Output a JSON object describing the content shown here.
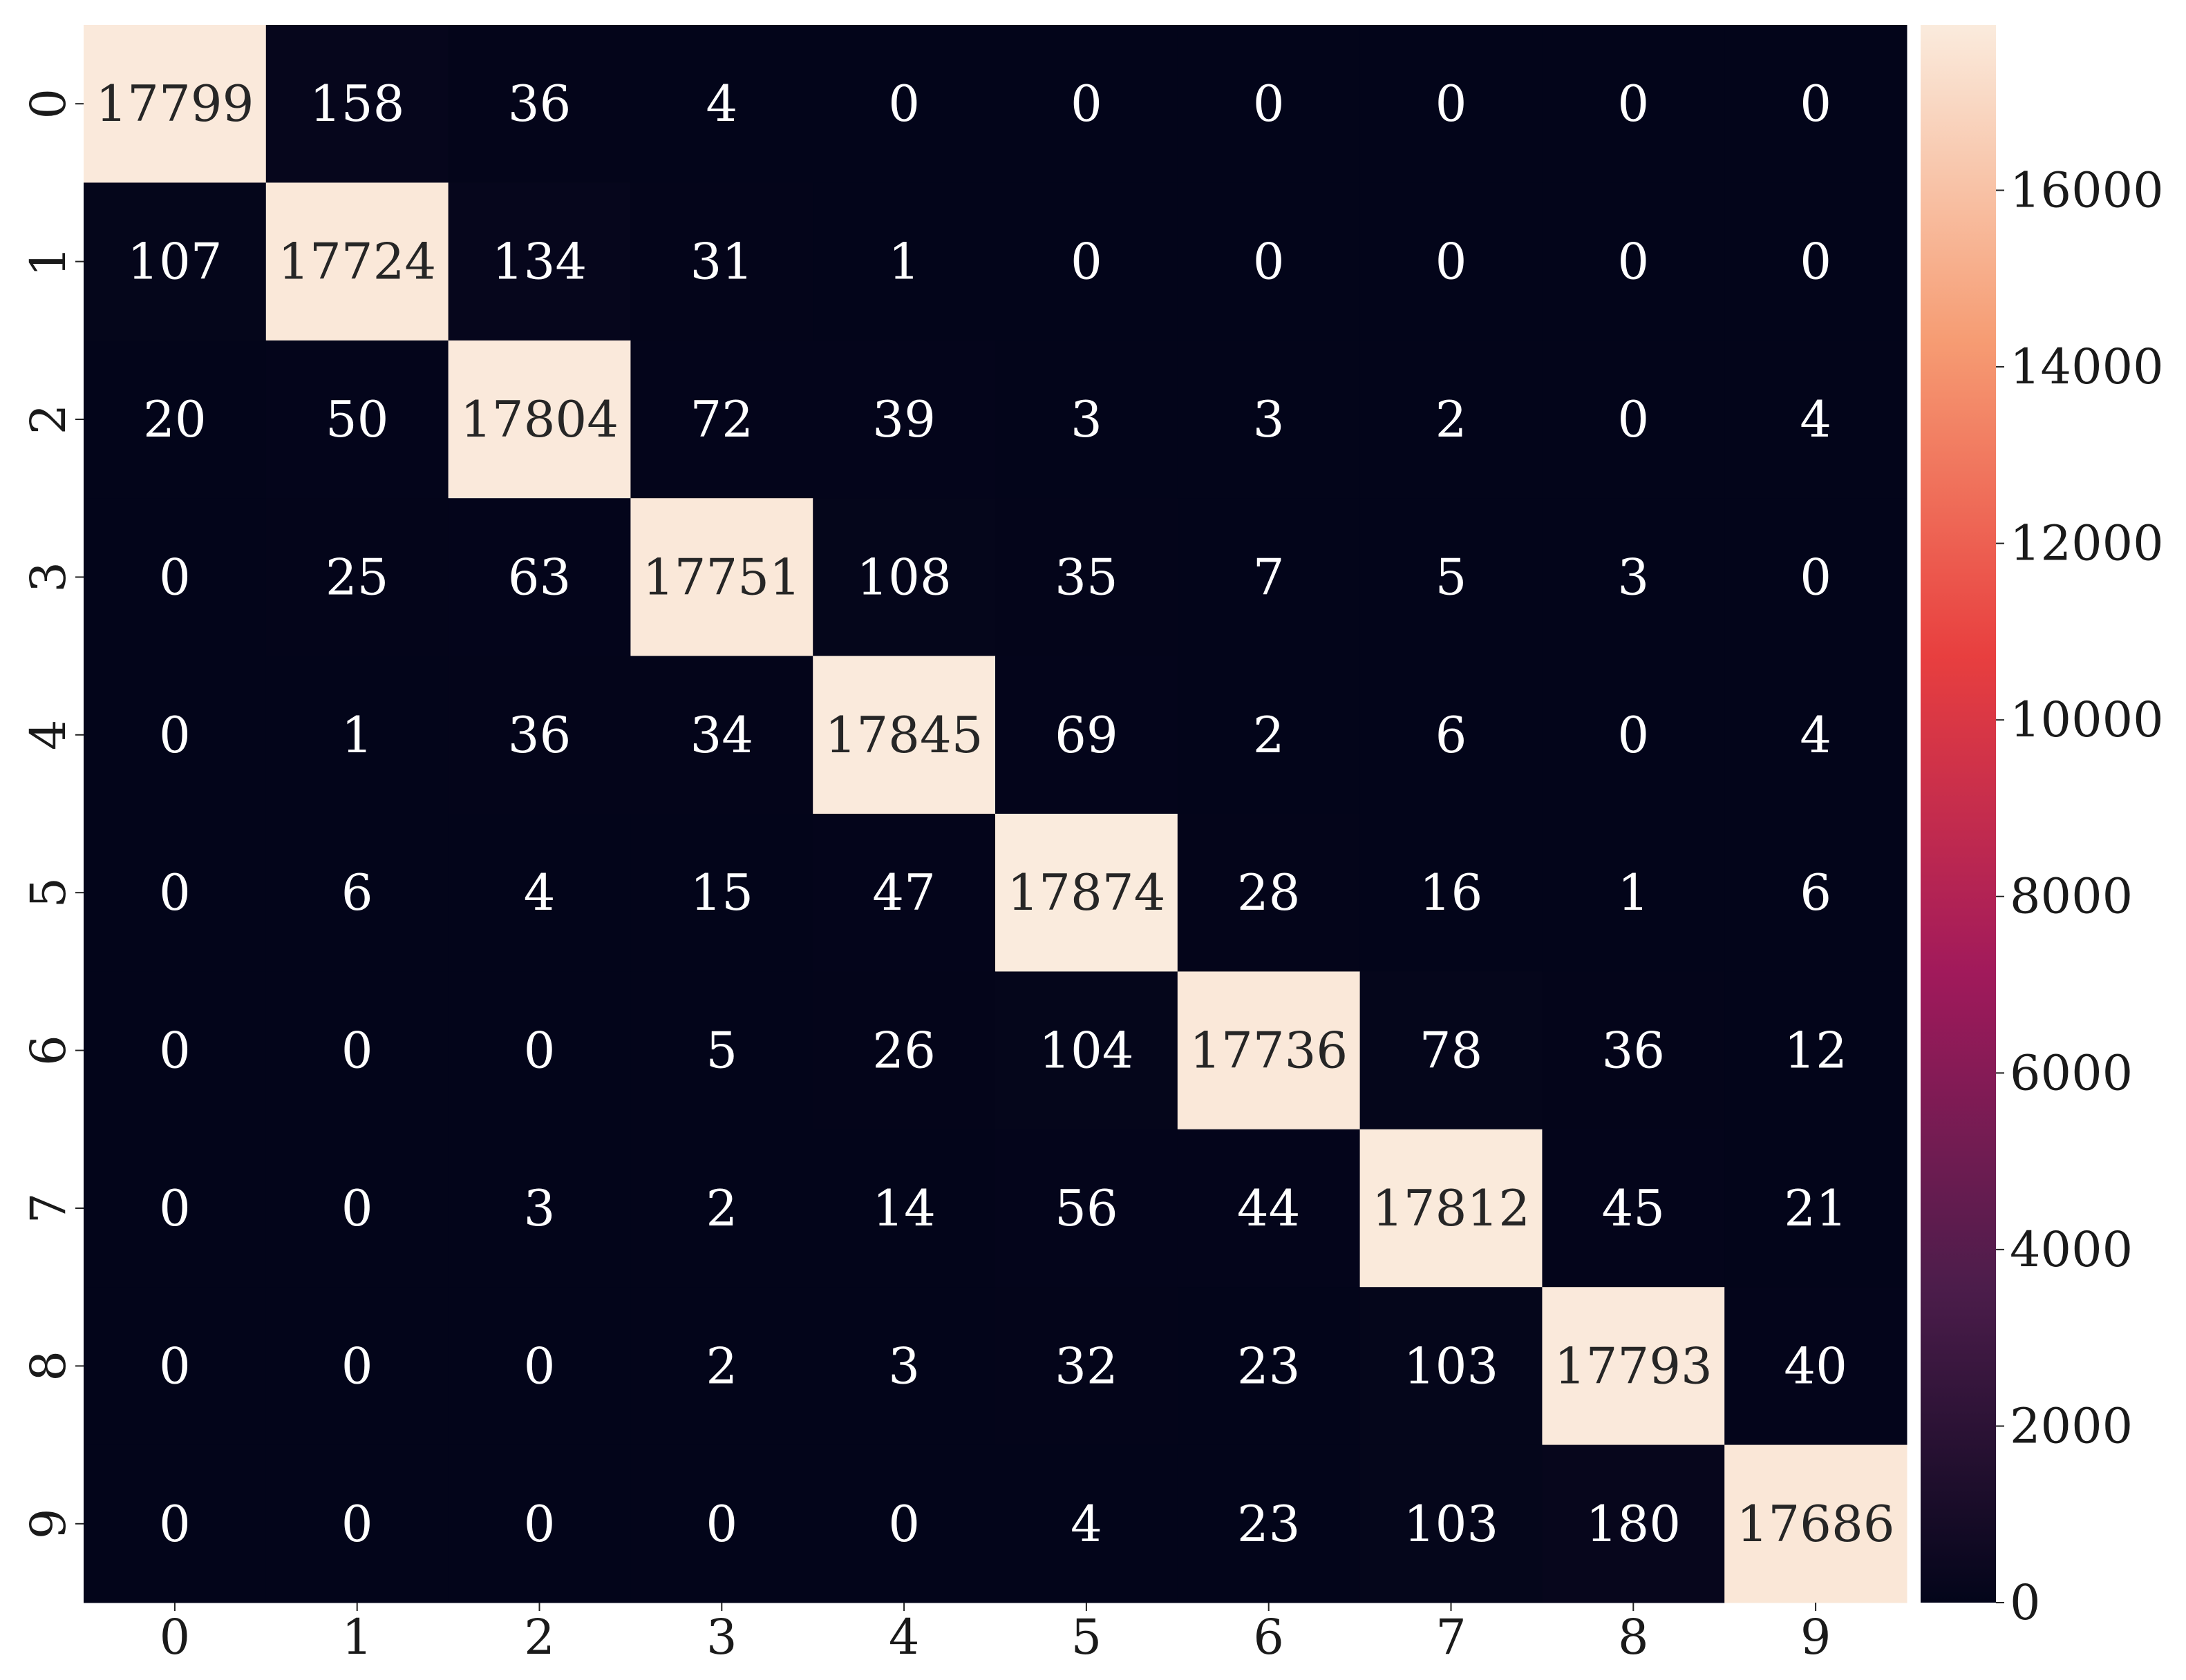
{
  "chart_data": {
    "type": "heatmap",
    "x_categories": [
      "0",
      "1",
      "2",
      "3",
      "4",
      "5",
      "6",
      "7",
      "8",
      "9"
    ],
    "y_categories": [
      "0",
      "1",
      "2",
      "3",
      "4",
      "5",
      "6",
      "7",
      "8",
      "9"
    ],
    "values": [
      [
        17799,
        158,
        36,
        4,
        0,
        0,
        0,
        0,
        0,
        0
      ],
      [
        107,
        17724,
        134,
        31,
        1,
        0,
        0,
        0,
        0,
        0
      ],
      [
        20,
        50,
        17804,
        72,
        39,
        3,
        3,
        2,
        0,
        4
      ],
      [
        0,
        25,
        63,
        17751,
        108,
        35,
        7,
        5,
        3,
        0
      ],
      [
        0,
        1,
        36,
        34,
        17845,
        69,
        2,
        6,
        0,
        4
      ],
      [
        0,
        6,
        4,
        15,
        47,
        17874,
        28,
        16,
        1,
        6
      ],
      [
        0,
        0,
        0,
        5,
        26,
        104,
        17736,
        78,
        36,
        12
      ],
      [
        0,
        0,
        3,
        2,
        14,
        56,
        44,
        17812,
        45,
        21
      ],
      [
        0,
        0,
        0,
        2,
        3,
        32,
        23,
        103,
        17793,
        40
      ],
      [
        0,
        0,
        0,
        0,
        0,
        4,
        23,
        103,
        180,
        17686
      ]
    ],
    "clim": [
      0,
      17874
    ],
    "cticks": [
      0,
      2000,
      4000,
      6000,
      8000,
      10000,
      12000,
      14000,
      16000
    ],
    "colorscale": [
      "#03051a",
      "#4c1d4b",
      "#a11a5b",
      "#e83f3f",
      "#f69c73",
      "#faebdd"
    ]
  }
}
